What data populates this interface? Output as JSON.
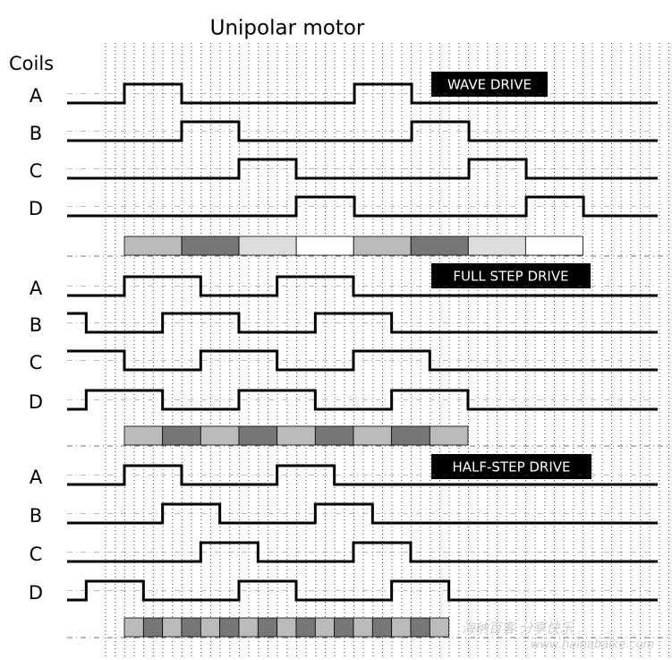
{
  "title": "Unipolar motor",
  "coils_label": "Coils",
  "sections": [
    {
      "label": "WAVE DRIVE",
      "coils": [
        "A",
        "B",
        "C",
        "D"
      ]
    },
    {
      "label": "FULL STEP DRIVE",
      "coils": [
        "A",
        "B",
        "C",
        "D"
      ]
    },
    {
      "label": "HALF-STEP DRIVE",
      "coils": [
        "A",
        "B",
        "C",
        "D"
      ]
    }
  ],
  "watermark": {
    "line1": "海纳百客 分享快乐",
    "line2": "www.hainabaike.com"
  }
}
